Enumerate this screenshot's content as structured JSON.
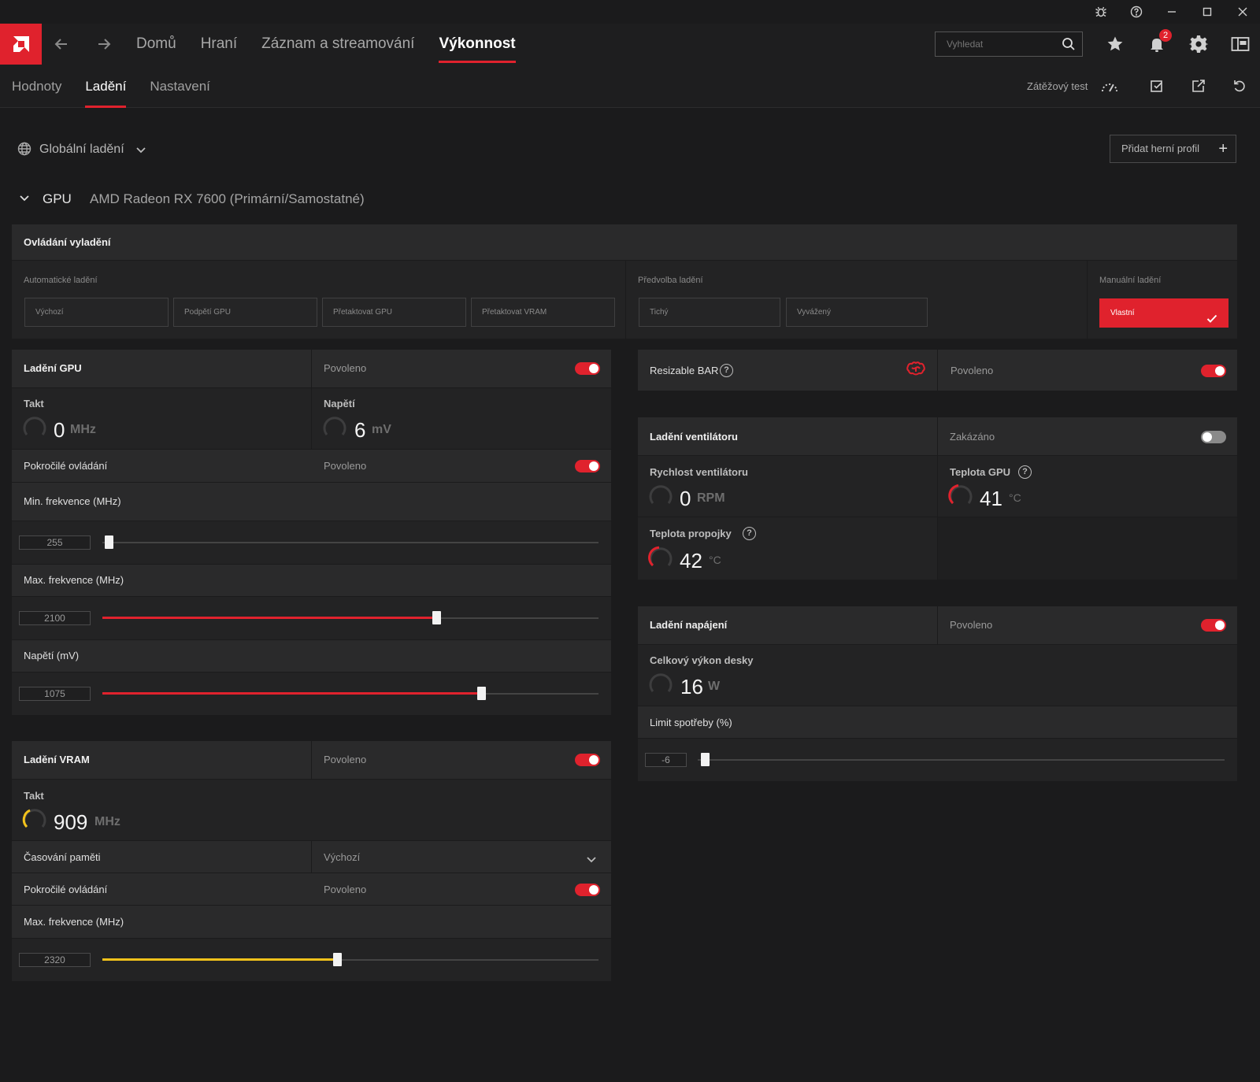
{
  "window": {
    "controls": [
      "bug-icon",
      "help-icon",
      "minimize-icon",
      "maximize-icon",
      "close-icon"
    ]
  },
  "topnav": {
    "links": [
      "Domů",
      "Hraní",
      "Záznam a streamování",
      "Výkonnost"
    ],
    "active": "Výkonnost",
    "search_placeholder": "Vyhledat",
    "notifications_count": "2",
    "accent": "#e0222d"
  },
  "subnav": {
    "tabs": [
      "Hodnoty",
      "Ladění",
      "Nastavení"
    ],
    "active": "Ladění",
    "stress_test": "Zátěžový test"
  },
  "profile": {
    "global": "Globální ladění",
    "add_profile": "Přidat herní profil",
    "gpu_label": "GPU",
    "gpu_name": "AMD Radeon RX 7600 (Primární/Samostatné)"
  },
  "tuning_control": {
    "title": "Ovládání vyladění",
    "auto_label": "Automatické ladění",
    "auto_options": [
      "Výchozí",
      "Podpětí GPU",
      "Přetaktovat GPU",
      "Přetaktovat VRAM"
    ],
    "preset_label": "Předvolba ladění",
    "preset_options": [
      "Tichý",
      "Vyvážený"
    ],
    "manual_label": "Manuální ladění",
    "manual_selected": "Vlastní"
  },
  "gpu_tuning": {
    "title": "Ladění GPU",
    "status": "Povoleno",
    "clock_label": "Takt",
    "clock_value": "0",
    "clock_unit": "MHz",
    "voltage_label": "Napětí",
    "voltage_value": "6",
    "voltage_unit": "mV",
    "advanced_label": "Pokročilé ovládání",
    "advanced_status": "Povoleno",
    "min_freq_label": "Min. frekvence (MHz)",
    "min_freq_value": "255",
    "min_freq_level": 0.01,
    "max_freq_label": "Max. frekvence (MHz)",
    "max_freq_value": "2100",
    "max_freq_level": 0.67,
    "voltage_mv_label": "Napětí (mV)",
    "voltage_mv_value": "1075",
    "voltage_mv_level": 0.76
  },
  "vram_tuning": {
    "title": "Ladění VRAM",
    "status": "Povoleno",
    "clock_label": "Takt",
    "clock_value": "909",
    "clock_unit": "MHz",
    "timing_label": "Časování paměti",
    "timing_value": "Výchozí",
    "advanced_label": "Pokročilé ovládání",
    "advanced_status": "Povoleno",
    "max_freq_label": "Max. frekvence (MHz)",
    "max_freq_value": "2320",
    "max_freq_level": 0.47,
    "accent": "#f2c21b"
  },
  "resizable_bar": {
    "title": "Resizable BAR",
    "status": "Povoleno"
  },
  "fan_tuning": {
    "title": "Ladění ventilátoru",
    "status": "Zakázáno",
    "fan_speed_label": "Rychlost ventilátoru",
    "fan_speed_value": "0",
    "fan_speed_unit": "RPM",
    "gpu_temp_label": "Teplota GPU",
    "gpu_temp_value": "41",
    "gpu_temp_unit": "°C",
    "junction_label": "Teplota propojky",
    "junction_value": "42",
    "junction_unit": "°C"
  },
  "power_tuning": {
    "title": "Ladění napájení",
    "status": "Povoleno",
    "board_power_label": "Celkový výkon desky",
    "board_power_value": "16",
    "board_power_unit": "W",
    "limit_label": "Limit spotřeby (%)",
    "limit_value": "-6",
    "limit_level": 0.01
  }
}
